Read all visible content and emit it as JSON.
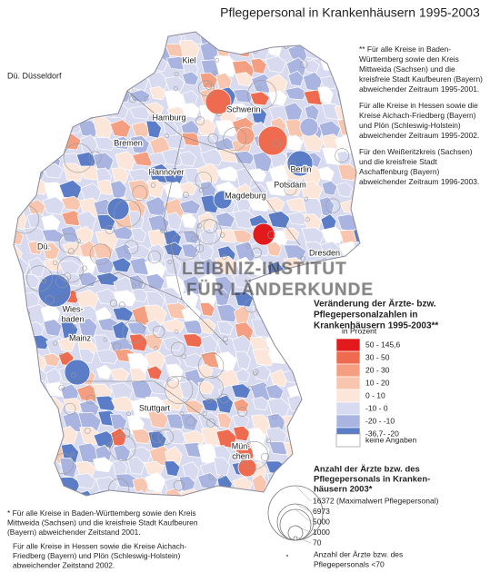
{
  "title": "Pflegepersonal  in Krankenhäusern 1995-2003",
  "abbreviation": "Dü. Düsseldorf",
  "notes_right": [
    [
      "** Für alle Kreise in Baden-",
      "Württemberg sowie den Kreis",
      "Mittweida (Sachsen) und die",
      "kreisfreie Stadt Kaufbeuren (Bayern)",
      "abweichender Zeitraum 1995-2001."
    ],
    [
      "Für alle Kreise in Hessen sowie die",
      "Kreise Aichach-Friedberg (Bayern)",
      "und Plön (Schleswig-Holstein)",
      "abweichender Zeitraum 1995-2002."
    ],
    [
      "Für den Weißeritzkreis (Sachsen)",
      "und die kreisfreie Stadt",
      "Aschaffenburg (Bayern)",
      "abweichender Zeitraum 1996-2003."
    ]
  ],
  "cities": [
    [
      "Kiel"
    ],
    [
      "Hamburg"
    ],
    [
      "Schwerin"
    ],
    [
      "Bremen"
    ],
    [
      "Hannover"
    ],
    [
      "Berlin"
    ],
    [
      "Potsdam"
    ],
    [
      "Magdeburg"
    ],
    [
      "Dü."
    ],
    [
      "Dresden"
    ],
    [
      "Wies-",
      "baden"
    ],
    [
      "Mainz"
    ],
    [
      "Stuttgart"
    ],
    [
      "Mün-",
      "chen"
    ]
  ],
  "watermark": [
    "LEIBNIZ-INSTITUT",
    "FÜR LÄNDERKUNDE"
  ],
  "legend": {
    "title": [
      "Veränderung der Ärzte- bzw.",
      "Pflegepersonalzahlen in",
      "Krankenhäusern 1995-2003**"
    ],
    "unit": "in Prozent",
    "classes": [
      {
        "label": "50  - 145,6",
        "color": "#e31a1c"
      },
      {
        "label": "30  -   50",
        "color": "#ef6b4f"
      },
      {
        "label": "20  -   30",
        "color": "#f49f82"
      },
      {
        "label": "10  -   20",
        "color": "#f8c6ae"
      },
      {
        "label": "0  -   10",
        "color": "#fce6da"
      },
      {
        "label": "-10  -    0",
        "color": "#d8dbf0"
      },
      {
        "label": "-20  -  -10",
        "color": "#a9b5e0"
      },
      {
        "label": "-36,7-  -20",
        "color": "#5b7cc7"
      }
    ],
    "no_data": "keine Angaben"
  },
  "size_legend": {
    "title": [
      "Anzahl der Ärzte bzw. des",
      "Pflegepersonals in Kranken-",
      "häusern 2003*"
    ],
    "sizes": [
      "16372 (Maximalwert Pflegepersonal)",
      "6973",
      "5000",
      "1000",
      "70"
    ],
    "small_note": [
      "Anzahl der Ärzte bzw. des",
      "Pflegepersonals <70"
    ]
  },
  "notes_bottom": [
    [
      "* Für alle Kreise in Baden-Württemberg sowie den Kreis",
      "Mittweida (Sachsen) und die kreisfreie Stadt Kaufbeuren",
      "(Bayern) abweichender Zeitstand 2001."
    ],
    [
      "Für alle Kreise in Hessen sowie die Kreise Aichach-",
      "Friedberg (Bayern) und Plön (Schleswig-Holstein)",
      "abweichender Zeitstand 2002."
    ]
  ]
}
